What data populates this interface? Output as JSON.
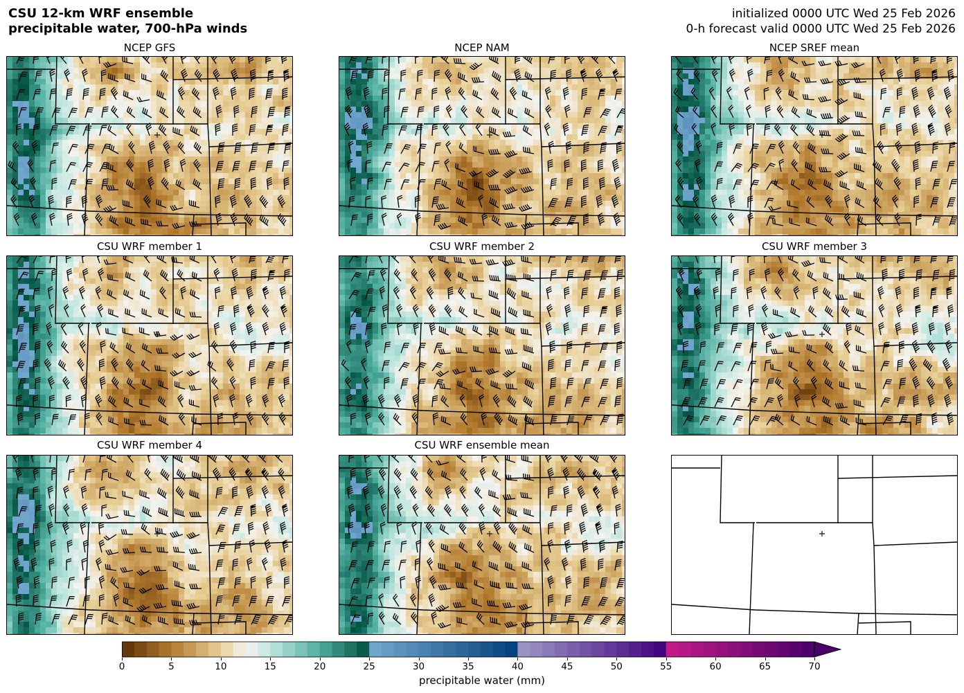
{
  "header": {
    "title_line1": "CSU 12-km WRF ensemble",
    "title_line2": "precipitable water, 700-hPa winds",
    "init_line": "initialized 0000 UTC Wed 25 Feb 2026",
    "valid_line": "0-h forecast valid 0000 UTC Wed 25 Feb 2026"
  },
  "panels": [
    {
      "title": "NCEP GFS"
    },
    {
      "title": "NCEP NAM"
    },
    {
      "title": "NCEP SREF mean"
    },
    {
      "title": "CSU WRF member 1"
    },
    {
      "title": "CSU WRF member 2"
    },
    {
      "title": "CSU WRF member 3"
    },
    {
      "title": "CSU WRF member 4"
    },
    {
      "title": "CSU WRF ensemble mean"
    },
    {
      "title": ""
    }
  ],
  "colorbar": {
    "label": "precipitable water (mm)",
    "ticks": [
      "0",
      "5",
      "10",
      "15",
      "20",
      "25",
      "30",
      "35",
      "40",
      "45",
      "50",
      "55",
      "60",
      "65",
      "70"
    ],
    "min": 0,
    "max": 70,
    "extend": "max",
    "colors": {
      "dry_dark": "#5a3004",
      "dry_mid": "#b27a2e",
      "dry_light": "#e8cf96",
      "neutral": "#f5f3ef",
      "wet_light": "#bfe6df",
      "wet_mid": "#4fae9f",
      "wet_dark": "#004f3f",
      "blue_light": "#74a9cf",
      "blue_dark": "#023f7a",
      "purple_light": "#9e9ac8",
      "purple_dark": "#3f007d",
      "magenta_light": "#c51b8a",
      "magenta_dark": "#49006a"
    }
  }
}
